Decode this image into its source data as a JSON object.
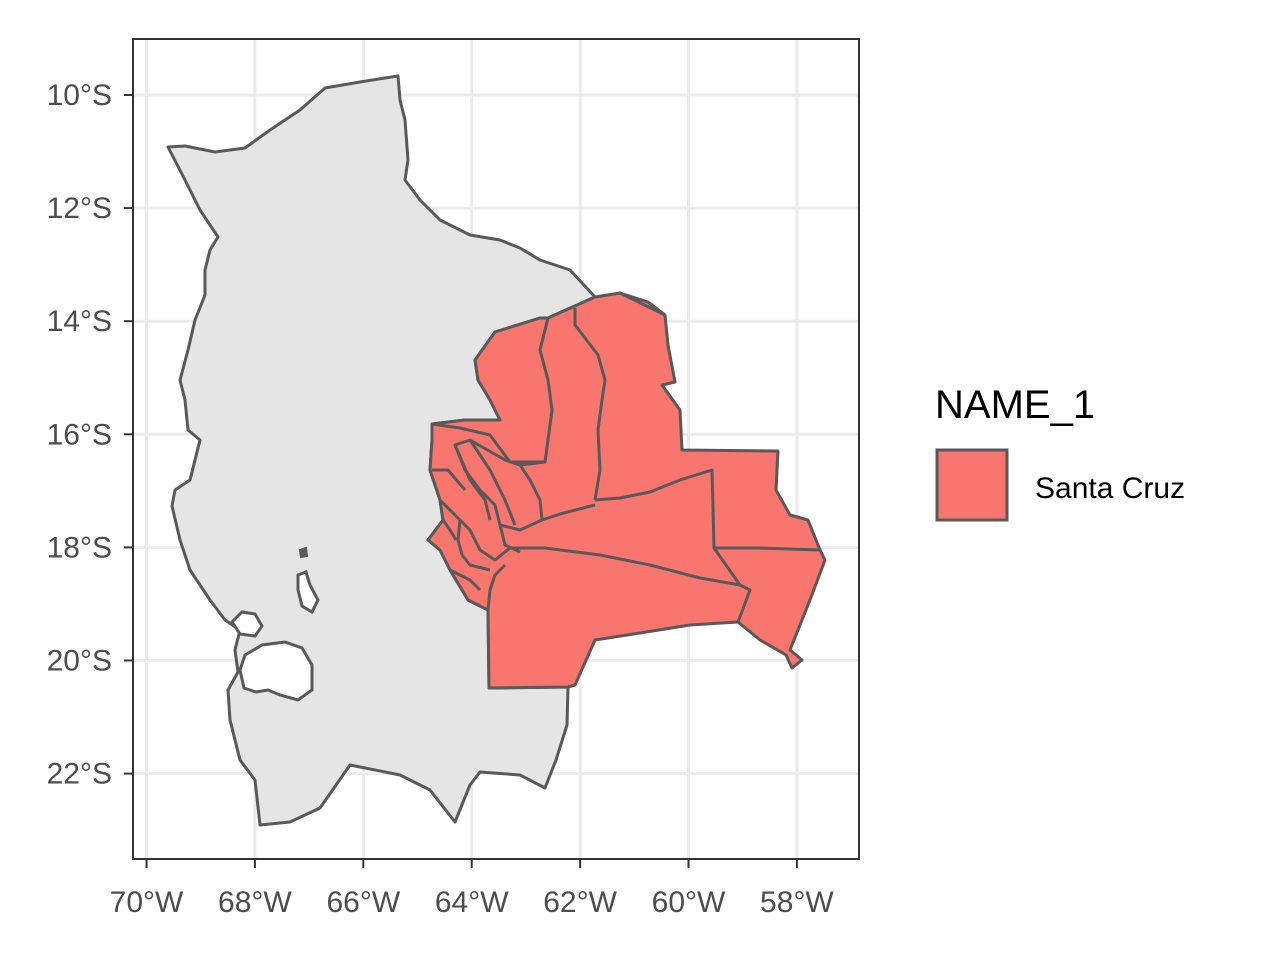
{
  "chart_data": {
    "type": "choropleth map",
    "region": "Bolivia",
    "highlighted_region": "Santa Cruz",
    "grid": true,
    "legend_position": "right",
    "xlim": [
      -70.3,
      -56.9
    ],
    "ylim": [
      -23.5,
      -9.0
    ],
    "x_ticks": [
      -70,
      -68,
      -66,
      -64,
      -62,
      -60,
      -58
    ],
    "y_ticks": [
      -10,
      -12,
      -14,
      -16,
      -18,
      -20,
      -22
    ],
    "x_tick_labels": [
      "70°W",
      "68°W",
      "66°W",
      "64°W",
      "62°W",
      "60°W",
      "58°W"
    ],
    "y_tick_labels": [
      "10°S",
      "12°S",
      "14°S",
      "16°S",
      "18°S",
      "20°S",
      "22°S"
    ],
    "legend": {
      "title": "NAME_1",
      "entries": [
        {
          "label": "Santa Cruz",
          "color": "#F8766D"
        }
      ]
    }
  },
  "colors": {
    "highlight_fill": "#F8766D",
    "base_fill": "#E5E5E5",
    "outline": "#595959",
    "grid": "#EBEBEB",
    "panel_border": "#333333",
    "tick_text": "#4D4D4D"
  }
}
